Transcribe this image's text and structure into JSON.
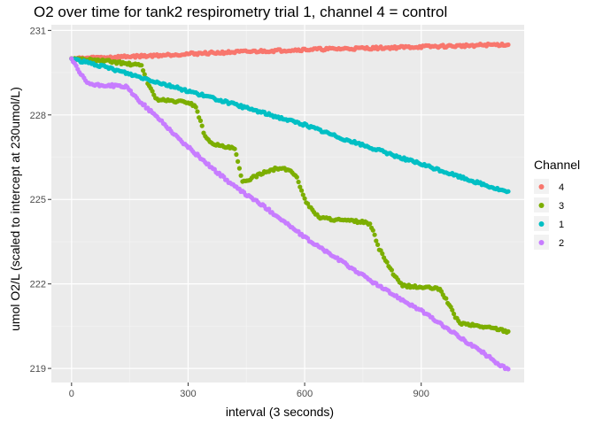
{
  "chart_data": {
    "type": "scatter",
    "title": "O2 over time for tank2 respirometry trial 1, channel 4 = control",
    "xlabel": "interval (3 seconds)",
    "ylabel": "umol O2/L (scaled to intercept at 230umol/L)",
    "xlim": [
      -52,
      1165
    ],
    "ylim": [
      218.5,
      231.2
    ],
    "x_ticks": [
      0,
      300,
      600,
      900
    ],
    "y_ticks": [
      219,
      222,
      225,
      228,
      231
    ],
    "grid": true,
    "background": "#ebebeb",
    "legend": {
      "title": "Channel",
      "position": "right"
    },
    "series": [
      {
        "name": "4",
        "color": "#f8766d",
        "points": [
          [
            0,
            230.0
          ],
          [
            100,
            230.05
          ],
          [
            200,
            230.1
          ],
          [
            300,
            230.17
          ],
          [
            400,
            230.22
          ],
          [
            500,
            230.27
          ],
          [
            600,
            230.32
          ],
          [
            700,
            230.35
          ],
          [
            800,
            230.38
          ],
          [
            900,
            230.42
          ],
          [
            1000,
            230.45
          ],
          [
            1050,
            230.48
          ],
          [
            1125,
            230.5
          ]
        ]
      },
      {
        "name": "3",
        "color": "#7cae00",
        "points": [
          [
            0,
            230.0
          ],
          [
            50,
            229.95
          ],
          [
            100,
            229.9
          ],
          [
            150,
            229.8
          ],
          [
            180,
            229.75
          ],
          [
            200,
            229.0
          ],
          [
            220,
            228.55
          ],
          [
            250,
            228.5
          ],
          [
            300,
            228.45
          ],
          [
            320,
            228.3
          ],
          [
            340,
            227.4
          ],
          [
            350,
            227.1
          ],
          [
            380,
            226.9
          ],
          [
            420,
            226.8
          ],
          [
            430,
            226.2
          ],
          [
            440,
            225.6
          ],
          [
            470,
            225.8
          ],
          [
            500,
            226.0
          ],
          [
            530,
            226.1
          ],
          [
            560,
            226.05
          ],
          [
            580,
            225.8
          ],
          [
            600,
            225.0
          ],
          [
            620,
            224.6
          ],
          [
            640,
            224.35
          ],
          [
            670,
            224.3
          ],
          [
            700,
            224.25
          ],
          [
            750,
            224.2
          ],
          [
            770,
            224.1
          ],
          [
            790,
            223.3
          ],
          [
            810,
            222.8
          ],
          [
            830,
            222.3
          ],
          [
            850,
            221.95
          ],
          [
            880,
            221.9
          ],
          [
            930,
            221.85
          ],
          [
            950,
            221.8
          ],
          [
            970,
            221.3
          ],
          [
            985,
            220.9
          ],
          [
            1000,
            220.6
          ],
          [
            1050,
            220.5
          ],
          [
            1100,
            220.4
          ],
          [
            1125,
            220.3
          ]
        ]
      },
      {
        "name": "1",
        "color": "#00bfc4",
        "points": [
          [
            0,
            230.0
          ],
          [
            100,
            229.65
          ],
          [
            200,
            229.25
          ],
          [
            300,
            228.85
          ],
          [
            400,
            228.45
          ],
          [
            500,
            228.05
          ],
          [
            600,
            227.65
          ],
          [
            700,
            227.15
          ],
          [
            800,
            226.7
          ],
          [
            900,
            226.25
          ],
          [
            1000,
            225.8
          ],
          [
            1100,
            225.35
          ],
          [
            1125,
            225.25
          ]
        ]
      },
      {
        "name": "2",
        "color": "#c77cff",
        "points": [
          [
            0,
            230.0
          ],
          [
            20,
            229.5
          ],
          [
            40,
            229.15
          ],
          [
            60,
            229.05
          ],
          [
            100,
            229.05
          ],
          [
            140,
            229.0
          ],
          [
            160,
            228.7
          ],
          [
            190,
            228.3
          ],
          [
            230,
            227.8
          ],
          [
            280,
            227.1
          ],
          [
            330,
            226.5
          ],
          [
            380,
            225.9
          ],
          [
            430,
            225.35
          ],
          [
            480,
            224.9
          ],
          [
            530,
            224.4
          ],
          [
            600,
            223.65
          ],
          [
            700,
            222.75
          ],
          [
            800,
            221.85
          ],
          [
            900,
            221.05
          ],
          [
            1000,
            220.1
          ],
          [
            1060,
            219.55
          ],
          [
            1100,
            219.15
          ],
          [
            1125,
            218.95
          ]
        ]
      }
    ]
  }
}
